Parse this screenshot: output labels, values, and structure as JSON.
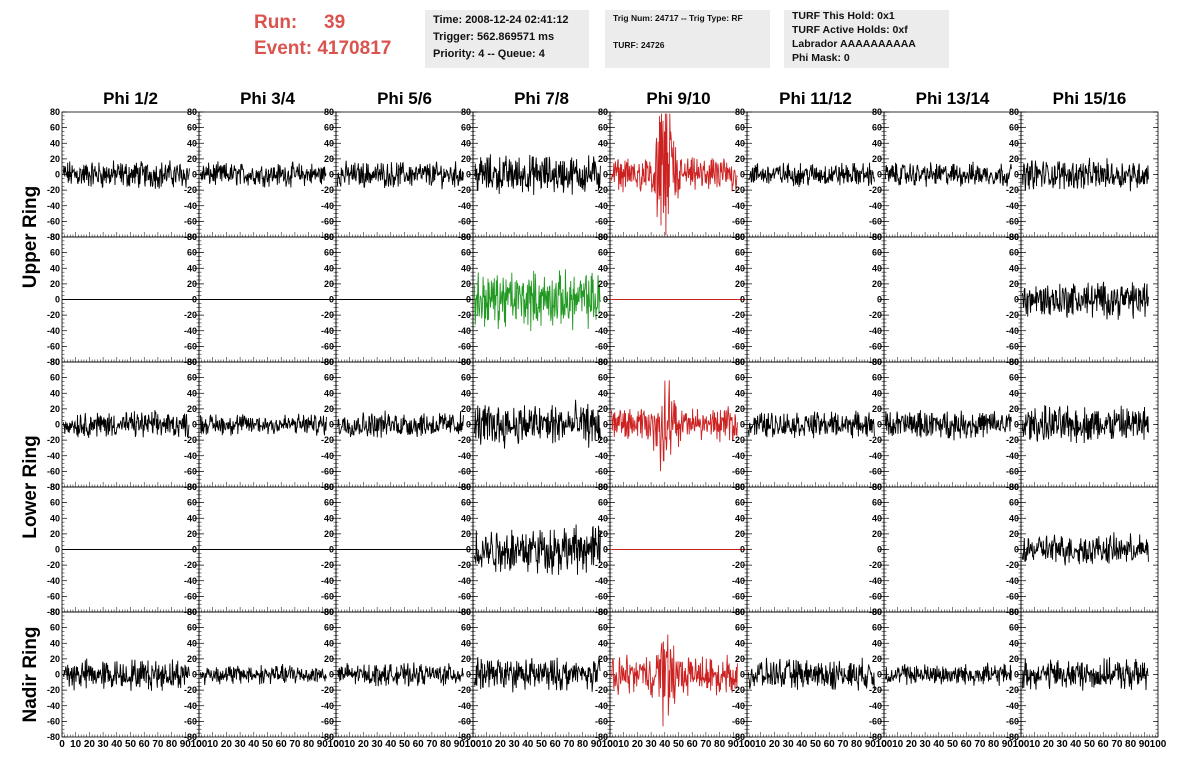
{
  "header": {
    "run_label": "Run:",
    "run_value": "39",
    "event_label": "Event:",
    "event_value": "4170817",
    "info1": [
      "Time: 2008-12-24 02:41:12",
      "Trigger: 562.869571 ms",
      "Priority: 4 -- Queue: 4"
    ],
    "info2": [
      "Trig Num: 24717 -- Trig Type: RF",
      "TURF: 24726"
    ],
    "info3": [
      "TURF This Hold: 0x1",
      "TURF Active Holds: 0xf",
      "Labrador AAAAAAAAAA",
      "Phi Mask: 0"
    ]
  },
  "colors": {
    "normal": "#000000",
    "triggered": "#cc2222",
    "green": "#229922",
    "header_red": "#d9534f",
    "panel_bg": "#ececec"
  },
  "chart_data": {
    "type": "line",
    "columns": [
      "Phi 1/2",
      "Phi 3/4",
      "Phi 5/6",
      "Phi 7/8",
      "Phi 9/10",
      "Phi 11/12",
      "Phi 13/14",
      "Phi 15/16"
    ],
    "ring_labels": [
      "Upper Ring",
      "Lower Ring",
      "Nadir Ring"
    ],
    "ylim": [
      -80,
      80
    ],
    "yticks": [
      "80",
      "60",
      "40",
      "20",
      "0",
      "-20",
      "-40",
      "-60",
      "-80"
    ],
    "xlim": [
      0,
      100
    ],
    "xticks": [
      "0",
      "10",
      "20",
      "30",
      "40",
      "50",
      "60",
      "70",
      "80",
      "90",
      "100"
    ],
    "rows": [
      {
        "ring": "Upper Ring",
        "traces": [
          {
            "style": "noise",
            "amp": 13,
            "color": "normal"
          },
          {
            "style": "noise",
            "amp": 11,
            "color": "normal"
          },
          {
            "style": "noise",
            "amp": 12,
            "color": "normal"
          },
          {
            "style": "noise",
            "amp": 18,
            "color": "normal"
          },
          {
            "style": "pulse",
            "amp": 15,
            "peak": 60,
            "color": "triggered"
          },
          {
            "style": "noise",
            "amp": 11,
            "color": "normal"
          },
          {
            "style": "noise",
            "amp": 11,
            "color": "normal"
          },
          {
            "style": "noise",
            "amp": 14,
            "color": "normal"
          }
        ]
      },
      {
        "ring": "Upper Ring",
        "traces": [
          {
            "style": "flat",
            "color": "normal"
          },
          {
            "style": "flat",
            "color": "normal"
          },
          {
            "style": "flat",
            "color": "normal"
          },
          {
            "style": "noise",
            "amp": 26,
            "color": "green"
          },
          {
            "style": "flat",
            "color": "triggered"
          },
          {
            "style": "none"
          },
          {
            "style": "none"
          },
          {
            "style": "noise",
            "amp": 17,
            "color": "normal"
          }
        ]
      },
      {
        "ring": "Lower Ring",
        "traces": [
          {
            "style": "noise",
            "amp": 12,
            "color": "normal"
          },
          {
            "style": "noise",
            "amp": 10,
            "color": "normal"
          },
          {
            "style": "noise",
            "amp": 12,
            "color": "normal"
          },
          {
            "style": "noise",
            "amp": 20,
            "color": "normal"
          },
          {
            "style": "pulse",
            "amp": 15,
            "peak": 35,
            "color": "triggered"
          },
          {
            "style": "noise",
            "amp": 12,
            "color": "normal"
          },
          {
            "style": "noise",
            "amp": 13,
            "color": "normal"
          },
          {
            "style": "noise",
            "amp": 17,
            "color": "normal"
          }
        ]
      },
      {
        "ring": "Lower Ring",
        "traces": [
          {
            "style": "flat",
            "color": "normal"
          },
          {
            "style": "flat",
            "color": "normal"
          },
          {
            "style": "flat",
            "color": "normal"
          },
          {
            "style": "noise",
            "amp": 22,
            "color": "normal"
          },
          {
            "style": "flat",
            "color": "triggered"
          },
          {
            "style": "none"
          },
          {
            "style": "none"
          },
          {
            "style": "noise",
            "amp": 14,
            "color": "normal"
          }
        ]
      },
      {
        "ring": "Nadir Ring",
        "traces": [
          {
            "style": "noise",
            "amp": 14,
            "color": "normal"
          },
          {
            "style": "noise",
            "amp": 9,
            "color": "normal"
          },
          {
            "style": "noise",
            "amp": 10,
            "color": "normal"
          },
          {
            "style": "noise",
            "amp": 15,
            "color": "normal"
          },
          {
            "style": "pulse",
            "amp": 18,
            "peak": 30,
            "color": "triggered"
          },
          {
            "style": "noise",
            "amp": 14,
            "color": "normal"
          },
          {
            "style": "noise",
            "amp": 10,
            "color": "normal"
          },
          {
            "style": "noise",
            "amp": 14,
            "color": "normal"
          }
        ]
      }
    ]
  }
}
